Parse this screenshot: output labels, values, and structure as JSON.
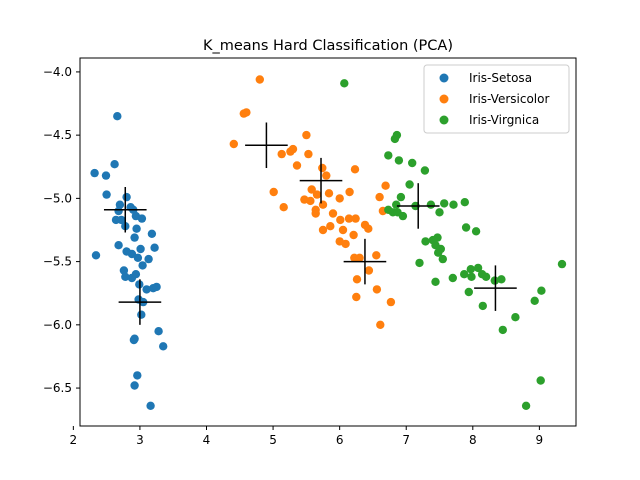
{
  "chart_data": {
    "type": "scatter",
    "title": "K_means Hard Classification (PCA)",
    "xlabel": "",
    "ylabel": "",
    "xlim": [
      2.1,
      9.55
    ],
    "ylim": [
      -6.8,
      -3.89
    ],
    "xticks": [
      2,
      3,
      4,
      5,
      6,
      7,
      8,
      9
    ],
    "yticks": [
      -4.0,
      -4.5,
      -5.0,
      -5.5,
      -6.0,
      -6.5
    ],
    "ytick_labels": [
      "−4.0",
      "−4.5",
      "−5.0",
      "−5.5",
      "−6.0",
      "−6.5"
    ],
    "xtick_labels": [
      "2",
      "3",
      "4",
      "5",
      "6",
      "7",
      "8",
      "9"
    ],
    "grid": false,
    "legend_position": "top-right",
    "series": [
      {
        "name": "Iris-Setosa",
        "color": "#1f77b4",
        "points": [
          [
            2.66,
            -4.35
          ],
          [
            2.32,
            -4.8
          ],
          [
            2.49,
            -4.82
          ],
          [
            2.62,
            -4.73
          ],
          [
            2.5,
            -4.97
          ],
          [
            2.7,
            -5.05
          ],
          [
            2.8,
            -4.99
          ],
          [
            2.64,
            -5.17
          ],
          [
            2.72,
            -5.17
          ],
          [
            2.86,
            -5.07
          ],
          [
            2.9,
            -5.09
          ],
          [
            2.94,
            -5.14
          ],
          [
            2.95,
            -5.24
          ],
          [
            3.03,
            -5.16
          ],
          [
            3.18,
            -5.28
          ],
          [
            2.68,
            -5.37
          ],
          [
            2.92,
            -5.31
          ],
          [
            3.01,
            -5.4
          ],
          [
            3.22,
            -5.39
          ],
          [
            2.88,
            -5.44
          ],
          [
            2.8,
            -5.42
          ],
          [
            2.97,
            -5.47
          ],
          [
            3.13,
            -5.48
          ],
          [
            3.04,
            -5.53
          ],
          [
            2.34,
            -5.45
          ],
          [
            2.76,
            -5.57
          ],
          [
            2.78,
            -5.62
          ],
          [
            2.88,
            -5.63
          ],
          [
            2.94,
            -5.6
          ],
          [
            2.99,
            -5.68
          ],
          [
            3.2,
            -5.71
          ],
          [
            3.25,
            -5.7
          ],
          [
            3.1,
            -5.72
          ],
          [
            2.98,
            -5.8
          ],
          [
            3.05,
            -5.82
          ],
          [
            3.02,
            -5.92
          ],
          [
            3.28,
            -6.05
          ],
          [
            2.91,
            -6.12
          ],
          [
            2.92,
            -6.11
          ],
          [
            3.35,
            -6.17
          ],
          [
            2.96,
            -6.4
          ],
          [
            2.92,
            -6.48
          ],
          [
            3.16,
            -6.64
          ],
          [
            2.68,
            -5.1
          ],
          [
            2.78,
            -5.22
          ]
        ],
        "centroids": [
          [
            2.78,
            -5.09
          ],
          [
            3.0,
            -5.82
          ]
        ]
      },
      {
        "name": "Iris-Versicolor",
        "color": "#ff7f0e",
        "points": [
          [
            4.8,
            -4.06
          ],
          [
            4.56,
            -4.33
          ],
          [
            4.6,
            -4.32
          ],
          [
            4.41,
            -4.57
          ],
          [
            5.13,
            -4.65
          ],
          [
            5.26,
            -4.63
          ],
          [
            5.3,
            -4.61
          ],
          [
            5.5,
            -4.5
          ],
          [
            5.53,
            -4.65
          ],
          [
            5.36,
            -4.74
          ],
          [
            5.74,
            -4.76
          ],
          [
            5.8,
            -4.82
          ],
          [
            6.23,
            -4.77
          ],
          [
            5.01,
            -4.95
          ],
          [
            5.58,
            -4.93
          ],
          [
            5.66,
            -4.97
          ],
          [
            5.84,
            -4.96
          ],
          [
            5.75,
            -5.05
          ],
          [
            5.56,
            -5.02
          ],
          [
            5.47,
            -5.01
          ],
          [
            5.16,
            -5.07
          ],
          [
            5.64,
            -5.09
          ],
          [
            5.64,
            -5.12
          ],
          [
            5.9,
            -5.12
          ],
          [
            6.0,
            -5.0
          ],
          [
            6.15,
            -4.95
          ],
          [
            6.69,
            -4.9
          ],
          [
            6.6,
            -4.99
          ],
          [
            6.01,
            -5.17
          ],
          [
            6.14,
            -5.16
          ],
          [
            6.24,
            -5.16
          ],
          [
            6.65,
            -5.1
          ],
          [
            5.75,
            -5.25
          ],
          [
            5.86,
            -5.22
          ],
          [
            6.05,
            -5.25
          ],
          [
            6.21,
            -5.29
          ],
          [
            6.38,
            -5.21
          ],
          [
            6.43,
            -5.24
          ],
          [
            6.0,
            -5.34
          ],
          [
            6.09,
            -5.36
          ],
          [
            6.22,
            -5.47
          ],
          [
            6.3,
            -5.47
          ],
          [
            6.44,
            -5.57
          ],
          [
            6.26,
            -5.64
          ],
          [
            6.56,
            -5.72
          ],
          [
            6.25,
            -5.78
          ],
          [
            6.77,
            -5.82
          ],
          [
            6.61,
            -6.0
          ],
          [
            6.55,
            -5.45
          ]
        ],
        "centroids": [
          [
            4.9,
            -4.58
          ],
          [
            5.72,
            -4.86
          ],
          [
            6.38,
            -5.5
          ]
        ]
      },
      {
        "name": "Iris-Virgnica",
        "color": "#2ca02c",
        "points": [
          [
            6.07,
            -4.09
          ],
          [
            6.86,
            -4.5
          ],
          [
            6.83,
            -4.53
          ],
          [
            6.73,
            -4.66
          ],
          [
            6.89,
            -4.7
          ],
          [
            7.09,
            -4.72
          ],
          [
            7.28,
            -4.78
          ],
          [
            7.05,
            -4.89
          ],
          [
            6.92,
            -4.99
          ],
          [
            6.85,
            -5.05
          ],
          [
            6.73,
            -5.09
          ],
          [
            6.8,
            -5.11
          ],
          [
            6.87,
            -5.11
          ],
          [
            6.95,
            -5.14
          ],
          [
            7.14,
            -5.06
          ],
          [
            7.37,
            -5.05
          ],
          [
            7.5,
            -5.11
          ],
          [
            7.57,
            -5.04
          ],
          [
            7.71,
            -5.05
          ],
          [
            7.88,
            -5.03
          ],
          [
            7.9,
            -5.23
          ],
          [
            8.05,
            -5.26
          ],
          [
            7.29,
            -5.34
          ],
          [
            7.4,
            -5.33
          ],
          [
            7.47,
            -5.31
          ],
          [
            7.44,
            -5.37
          ],
          [
            7.52,
            -5.4
          ],
          [
            7.48,
            -5.43
          ],
          [
            7.55,
            -5.48
          ],
          [
            7.2,
            -5.51
          ],
          [
            7.44,
            -5.66
          ],
          [
            7.7,
            -5.63
          ],
          [
            7.87,
            -5.6
          ],
          [
            7.97,
            -5.56
          ],
          [
            7.98,
            -5.62
          ],
          [
            8.08,
            -5.55
          ],
          [
            8.14,
            -5.6
          ],
          [
            8.2,
            -5.62
          ],
          [
            8.33,
            -5.65
          ],
          [
            8.43,
            -5.64
          ],
          [
            7.94,
            -5.74
          ],
          [
            8.15,
            -5.85
          ],
          [
            8.45,
            -6.04
          ],
          [
            8.64,
            -5.94
          ],
          [
            8.93,
            -5.81
          ],
          [
            9.03,
            -5.73
          ],
          [
            9.34,
            -5.52
          ],
          [
            9.02,
            -6.44
          ],
          [
            8.8,
            -6.64
          ]
        ],
        "centroids": [
          [
            7.18,
            -5.06
          ],
          [
            8.34,
            -5.71
          ]
        ]
      }
    ]
  }
}
